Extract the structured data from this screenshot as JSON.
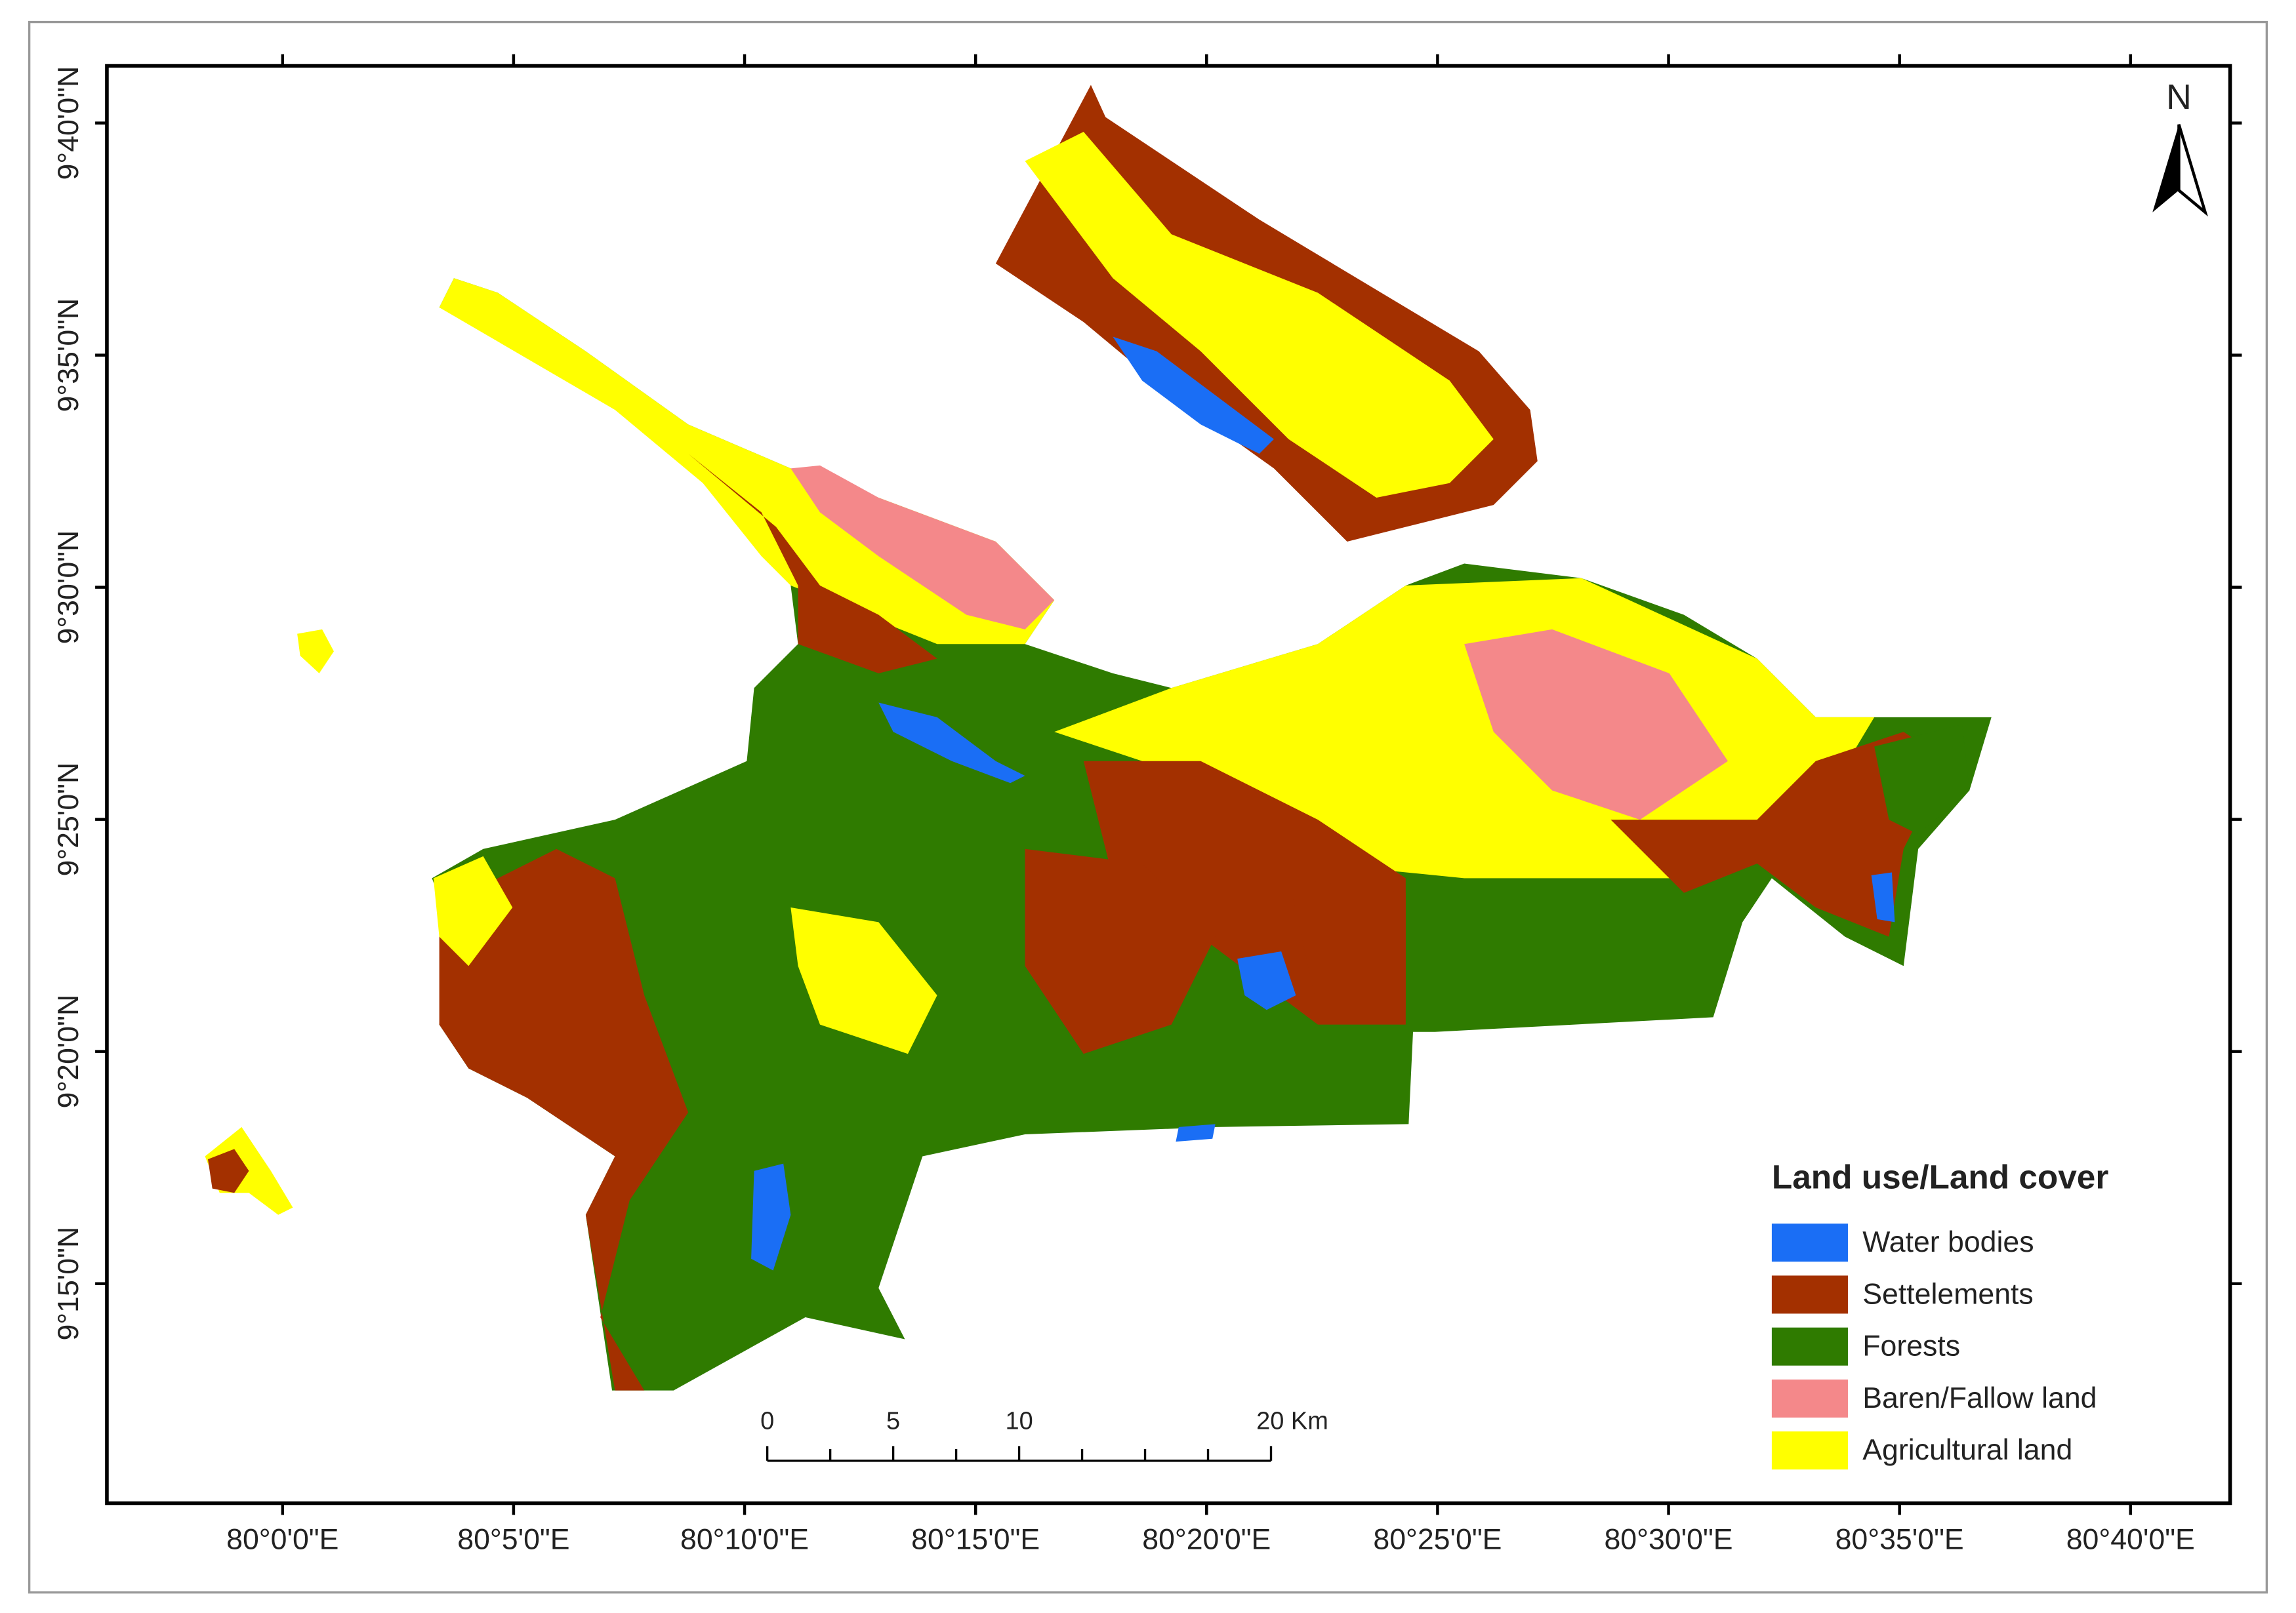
{
  "map": {
    "lat_labels": [
      "9°40'0\"N",
      "9°35'0\"N",
      "9°30'0\"N",
      "9°25'0\"N",
      "9°20'0\"N",
      "9°15'0\"N"
    ],
    "lon_labels": [
      "80°0'0\"E",
      "80°5'0\"E",
      "80°10'0\"E",
      "80°15'0\"E",
      "80°20'0\"E",
      "80°25'0\"E",
      "80°30'0\"E",
      "80°35'0\"E",
      "80°40'0\"E"
    ],
    "north": "N",
    "scale_bar": {
      "labels": [
        "0",
        "5",
        "10",
        "20 Km"
      ]
    },
    "legend": {
      "title": "Land use/Land cover",
      "items": [
        {
          "label": "Water bodies",
          "color": "#1a6ef5"
        },
        {
          "label": "Settelements",
          "color": "#a33000"
        },
        {
          "label": "Forests",
          "color": "#2f7b00"
        },
        {
          "label": "Baren/Fallow land",
          "color": "#f4888a"
        },
        {
          "label": "Agricultural land",
          "color": "#ffff00"
        }
      ]
    }
  }
}
